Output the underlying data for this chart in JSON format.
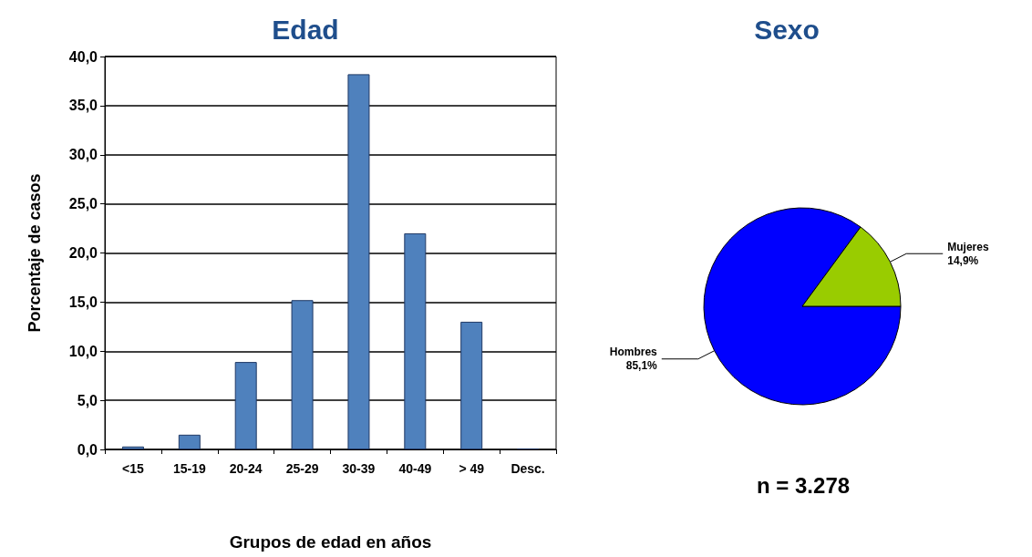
{
  "chart_data": [
    {
      "type": "bar",
      "title": "Edad",
      "xlabel": "Grupos de edad en años",
      "ylabel": "Porcentaje de casos",
      "categories": [
        "<15",
        "15-19",
        "20-24",
        "25-29",
        "30-39",
        "40-49",
        "> 49",
        "Desc."
      ],
      "values": [
        0.3,
        1.5,
        8.9,
        15.2,
        38.2,
        22.0,
        13.0,
        0.1
      ],
      "color": "#4f81bd",
      "ylim": [
        0,
        40
      ],
      "yticks": [
        {
          "value": 0,
          "label": "0,0"
        },
        {
          "value": 5,
          "label": "5,0"
        },
        {
          "value": 10,
          "label": "10,0"
        },
        {
          "value": 15,
          "label": "15,0"
        },
        {
          "value": 20,
          "label": "20,0"
        },
        {
          "value": 25,
          "label": "25,0"
        },
        {
          "value": 30,
          "label": "30,0"
        },
        {
          "value": 35,
          "label": "35,0"
        },
        {
          "value": 40,
          "label": "40,0"
        }
      ],
      "grid": "y",
      "legend": false
    },
    {
      "type": "pie",
      "title": "Sexo",
      "categories": [
        "Hombres",
        "Mujeres"
      ],
      "values": [
        85.1,
        14.9
      ],
      "colors": [
        "#0000ff",
        "#99cc00"
      ],
      "value_labels": [
        "85,1%",
        "14,9%"
      ],
      "annotations": [
        "n = 3.278"
      ],
      "legend": false
    }
  ]
}
